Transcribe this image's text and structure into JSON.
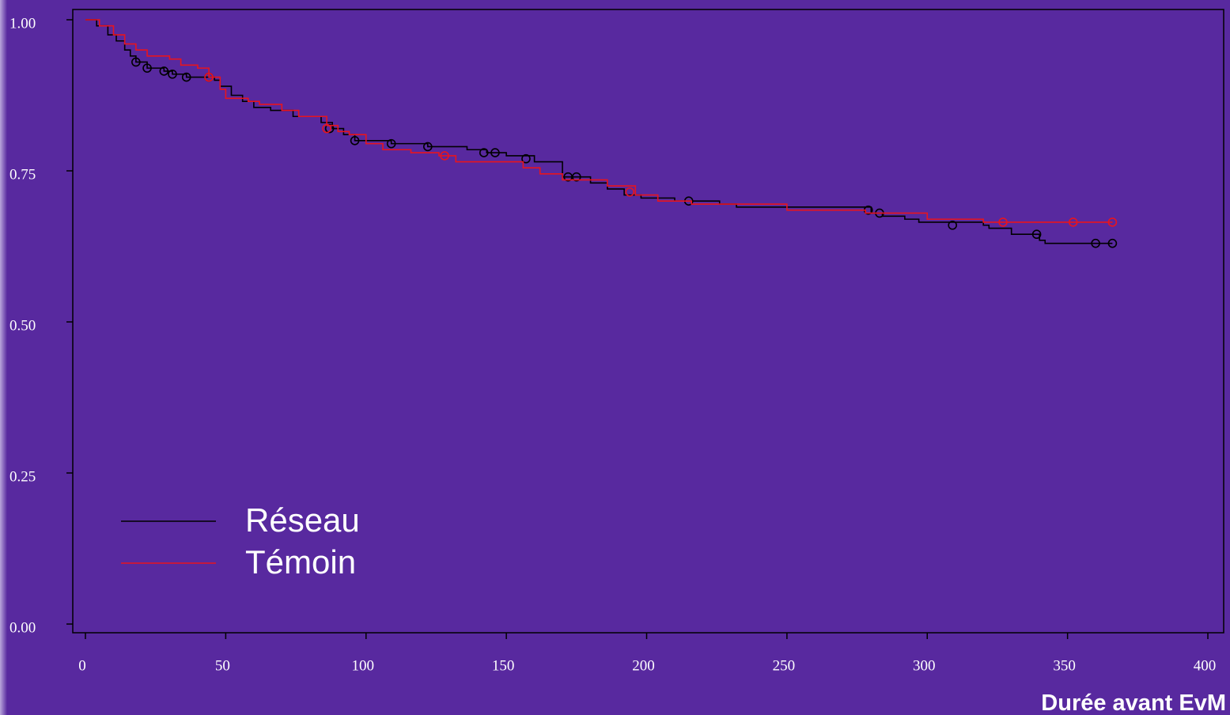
{
  "chart_data": {
    "type": "line",
    "step": "post",
    "x_label": "Durée avant EvM",
    "xlim": [
      0,
      400
    ],
    "xticks": [
      0,
      50,
      100,
      150,
      200,
      250,
      300,
      350,
      400
    ],
    "ylim": [
      0,
      1
    ],
    "yticks": [
      {
        "value": 0,
        "label": "0.00"
      },
      {
        "value": 0.25,
        "label": "0.25"
      },
      {
        "value": 0.5,
        "label": "0.50"
      },
      {
        "value": 0.75,
        "label": "0.75"
      },
      {
        "value": 1,
        "label": "1.00"
      }
    ],
    "grid": false,
    "legend": "lower left",
    "series": [
      {
        "name": "Réseau",
        "color": "#000000",
        "x": [
          0,
          4,
          8,
          11,
          14,
          16,
          18,
          22,
          28,
          31,
          36,
          46,
          48,
          52,
          56,
          60,
          66,
          74,
          84,
          88,
          92,
          96,
          109,
          122,
          136,
          143,
          150,
          160,
          170,
          180,
          186,
          192,
          198,
          210,
          226,
          232,
          280,
          284,
          292,
          297,
          320,
          322,
          330,
          340,
          342,
          366
        ],
        "values": [
          1.0,
          0.99,
          0.975,
          0.965,
          0.95,
          0.94,
          0.93,
          0.92,
          0.915,
          0.91,
          0.905,
          0.9,
          0.89,
          0.875,
          0.865,
          0.855,
          0.85,
          0.84,
          0.83,
          0.82,
          0.81,
          0.8,
          0.795,
          0.79,
          0.785,
          0.78,
          0.775,
          0.765,
          0.74,
          0.73,
          0.72,
          0.71,
          0.705,
          0.7,
          0.695,
          0.69,
          0.68,
          0.675,
          0.67,
          0.665,
          0.66,
          0.655,
          0.645,
          0.635,
          0.63,
          0.63
        ],
        "censored_x": [
          18,
          22,
          28,
          31,
          36,
          44,
          87,
          96,
          109,
          122,
          142,
          146,
          157,
          172,
          175,
          215,
          279,
          283,
          309,
          339,
          360,
          366
        ],
        "censored_values": [
          0.93,
          0.92,
          0.915,
          0.91,
          0.905,
          0.905,
          0.82,
          0.8,
          0.795,
          0.79,
          0.78,
          0.78,
          0.77,
          0.74,
          0.74,
          0.7,
          0.685,
          0.68,
          0.66,
          0.645,
          0.63,
          0.63
        ]
      },
      {
        "name": "Témoin",
        "color": "#e8141e",
        "x": [
          0,
          5,
          10,
          14,
          18,
          22,
          30,
          34,
          40,
          44,
          48,
          50,
          58,
          62,
          70,
          76,
          86,
          90,
          94,
          100,
          106,
          116,
          126,
          132,
          156,
          162,
          170,
          186,
          196,
          204,
          216,
          250,
          278,
          300,
          320,
          366
        ],
        "values": [
          1.0,
          0.99,
          0.975,
          0.96,
          0.95,
          0.94,
          0.935,
          0.925,
          0.92,
          0.905,
          0.885,
          0.87,
          0.865,
          0.86,
          0.85,
          0.84,
          0.825,
          0.815,
          0.81,
          0.795,
          0.785,
          0.78,
          0.775,
          0.765,
          0.755,
          0.745,
          0.735,
          0.725,
          0.71,
          0.7,
          0.695,
          0.685,
          0.68,
          0.67,
          0.665,
          0.665
        ],
        "censored_x": [
          44,
          86,
          128,
          194,
          327,
          352,
          366
        ],
        "censored_values": [
          0.905,
          0.82,
          0.775,
          0.715,
          0.665,
          0.665,
          0.665
        ]
      }
    ]
  }
}
